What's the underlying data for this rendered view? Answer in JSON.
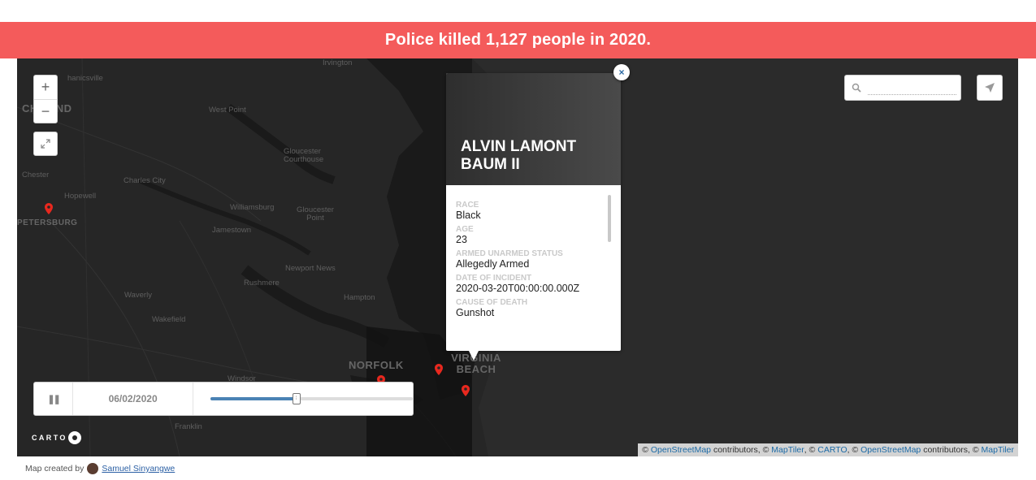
{
  "banner": {
    "text": "Police killed 1,127 people in 2020."
  },
  "map": {
    "places": [
      {
        "name": "Mechanicsville",
        "label": "hanicsville"
      },
      {
        "name": "Irvington",
        "label": "Irvington"
      },
      {
        "name": "Richmond",
        "label": "CHMOND"
      },
      {
        "name": "West Point",
        "label": "West Point"
      },
      {
        "name": "Gloucester Courthouse",
        "label": "Gloucester Courthouse"
      },
      {
        "name": "Chester",
        "label": "Chester"
      },
      {
        "name": "Charles City",
        "label": "Charles City"
      },
      {
        "name": "Hopewell",
        "label": "Hopewell"
      },
      {
        "name": "Williamsburg",
        "label": "Williamsburg"
      },
      {
        "name": "Gloucester Point",
        "label": "Gloucester Point"
      },
      {
        "name": "Petersburg",
        "label": "PETERSBURG"
      },
      {
        "name": "Jamestown",
        "label": "Jamestown"
      },
      {
        "name": "Newport News",
        "label": "Newport News"
      },
      {
        "name": "Rushmere",
        "label": "Rushmere"
      },
      {
        "name": "Waverly",
        "label": "Waverly"
      },
      {
        "name": "Hampton",
        "label": "Hampton"
      },
      {
        "name": "Wakefield",
        "label": "Wakefield"
      },
      {
        "name": "Norfolk",
        "label": "NORFOLK"
      },
      {
        "name": "Virginia Beach",
        "label": "VIRGINIA BEACH"
      },
      {
        "name": "Windsor",
        "label": "Windsor"
      },
      {
        "name": "Franklin",
        "label": "Franklin"
      }
    ],
    "marker_color": "#e8281e"
  },
  "controls": {
    "zoom_in": "+",
    "zoom_out": "−",
    "fullscreen_icon": "expand-icon",
    "search_icon": "magnifier-icon",
    "search_placeholder": "",
    "locate_icon": "navigation-arrow-icon"
  },
  "popup": {
    "title": "ALVIN LAMONT BAUM II",
    "close": "×",
    "fields": [
      {
        "label": "RACE",
        "value": "Black"
      },
      {
        "label": "AGE",
        "value": "23"
      },
      {
        "label": "ARMED UNARMED STATUS",
        "value": "Allegedly Armed"
      },
      {
        "label": "DATE OF INCIDENT",
        "value": "2020-03-20T00:00:00.000Z"
      },
      {
        "label": "CAUSE OF DEATH",
        "value": "Gunshot"
      }
    ]
  },
  "timeslider": {
    "pause_icon": "pause-icon",
    "pause_glyph": "❚❚",
    "date": "06/02/2020",
    "progress": 0.42,
    "knob_glyph": "⁞"
  },
  "logo": {
    "text": "CARTO"
  },
  "attribution": {
    "parts": [
      "©",
      "OpenStreetMap",
      "contributors, ©",
      "MapTiler",
      ", ©",
      "CARTO",
      ", ©",
      "OpenStreetMap",
      "contributors, ©",
      "MapTiler"
    ]
  },
  "credit": {
    "prefix": "Map created by",
    "author": "Samuel Sinyangwe"
  }
}
